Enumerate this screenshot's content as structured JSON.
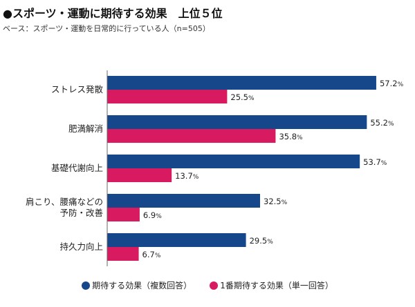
{
  "title": "●スポーツ・運動に期待する効果　上位５位",
  "subtitle": "ベース：スポーツ・運動を日常的に行っている人（n=505）",
  "colors": {
    "series0": "#16478a",
    "series1": "#d81b60",
    "axis": "#666666"
  },
  "chart_data": {
    "type": "bar",
    "orientation": "horizontal",
    "categories": [
      [
        "ストレス発散"
      ],
      [
        "肥満解消"
      ],
      [
        "基礎代謝向上"
      ],
      [
        "肩こり、腰痛などの",
        "予防・改善"
      ],
      [
        "持久力向上"
      ]
    ],
    "series": [
      {
        "name": "期待する効果（複数回答）",
        "values": [
          57.2,
          55.2,
          53.7,
          32.5,
          29.5
        ]
      },
      {
        "name": "1番期待する効果（単一回答）",
        "values": [
          25.5,
          35.8,
          13.7,
          6.9,
          6.7
        ]
      }
    ],
    "value_suffix": "%",
    "xlim": [
      0,
      70
    ],
    "grid": false,
    "legend_position": "bottom"
  }
}
